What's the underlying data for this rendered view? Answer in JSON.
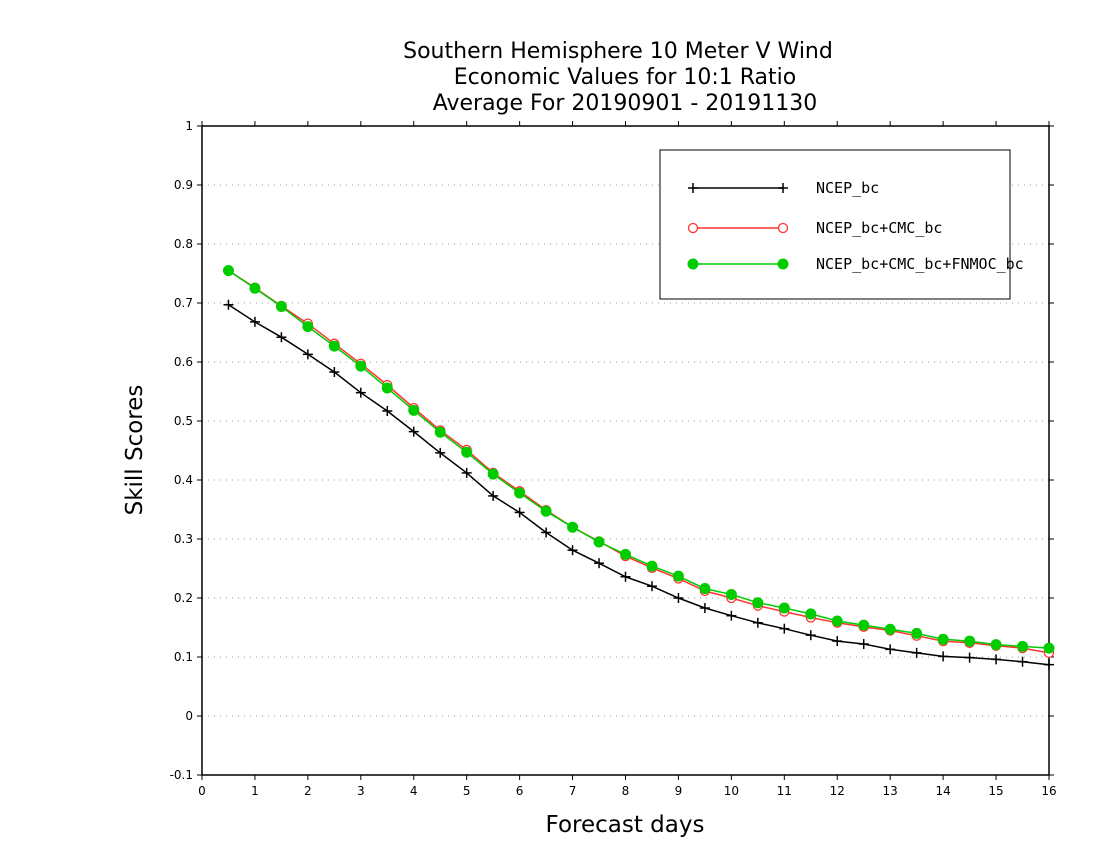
{
  "chart_data": {
    "type": "line",
    "title_lines": [
      "Southern Hemisphere 10 Meter V Wind",
      "Economic Values for 10:1 Ratio",
      "Average For 20190901 - 20191130"
    ],
    "xlabel": "Forecast days",
    "ylabel": "Skill Scores",
    "xlim": [
      0,
      16
    ],
    "ylim": [
      -0.1,
      1
    ],
    "x_ticks": [
      0,
      1,
      2,
      3,
      4,
      5,
      6,
      7,
      8,
      9,
      10,
      11,
      12,
      13,
      14,
      15,
      16
    ],
    "y_ticks": [
      -0.1,
      0,
      0.1,
      0.2,
      0.3,
      0.4,
      0.5,
      0.6,
      0.7,
      0.8,
      0.9,
      1
    ],
    "y_tick_labels": [
      "-0.1",
      "0",
      "0.1",
      "0.2",
      "0.3",
      "0.4",
      "0.5",
      "0.6",
      "0.7",
      "0.8",
      "0.9",
      "1"
    ],
    "grid": "horizontal dotted",
    "legend_position": "top-right",
    "x": [
      0.5,
      1,
      1.5,
      2,
      2.5,
      3,
      3.5,
      4,
      4.5,
      5,
      5.5,
      6,
      6.5,
      7,
      7.5,
      8,
      8.5,
      9,
      9.5,
      10,
      10.5,
      11,
      11.5,
      12,
      12.5,
      13,
      13.5,
      14,
      14.5,
      15,
      15.5,
      16
    ],
    "series": [
      {
        "name": "NCEP_bc",
        "color": "#000000",
        "marker": "plus",
        "values": [
          0.697,
          0.668,
          0.642,
          0.613,
          0.583,
          0.548,
          0.517,
          0.482,
          0.446,
          0.412,
          0.373,
          0.345,
          0.311,
          0.281,
          0.259,
          0.236,
          0.22,
          0.2,
          0.183,
          0.17,
          0.158,
          0.148,
          0.137,
          0.127,
          0.122,
          0.113,
          0.107,
          0.101,
          0.099,
          0.096,
          0.092,
          0.087
        ]
      },
      {
        "name": "NCEP_bc+CMC_bc",
        "color": "#ff3333",
        "marker": "open-circle",
        "values": [
          0.755,
          0.726,
          0.695,
          0.665,
          0.631,
          0.597,
          0.561,
          0.522,
          0.484,
          0.451,
          0.412,
          0.381,
          0.349,
          0.32,
          0.296,
          0.271,
          0.251,
          0.233,
          0.212,
          0.2,
          0.187,
          0.177,
          0.167,
          0.158,
          0.151,
          0.145,
          0.136,
          0.127,
          0.124,
          0.119,
          0.115,
          0.107
        ]
      },
      {
        "name": "NCEP_bc+CMC_bc+FNMOC_bc",
        "color": "#00cc00",
        "marker": "filled-circle",
        "values": [
          0.755,
          0.725,
          0.694,
          0.66,
          0.627,
          0.593,
          0.556,
          0.518,
          0.481,
          0.447,
          0.41,
          0.378,
          0.347,
          0.32,
          0.295,
          0.274,
          0.254,
          0.237,
          0.216,
          0.206,
          0.192,
          0.183,
          0.173,
          0.161,
          0.154,
          0.147,
          0.14,
          0.13,
          0.127,
          0.121,
          0.118,
          0.115
        ]
      }
    ]
  }
}
